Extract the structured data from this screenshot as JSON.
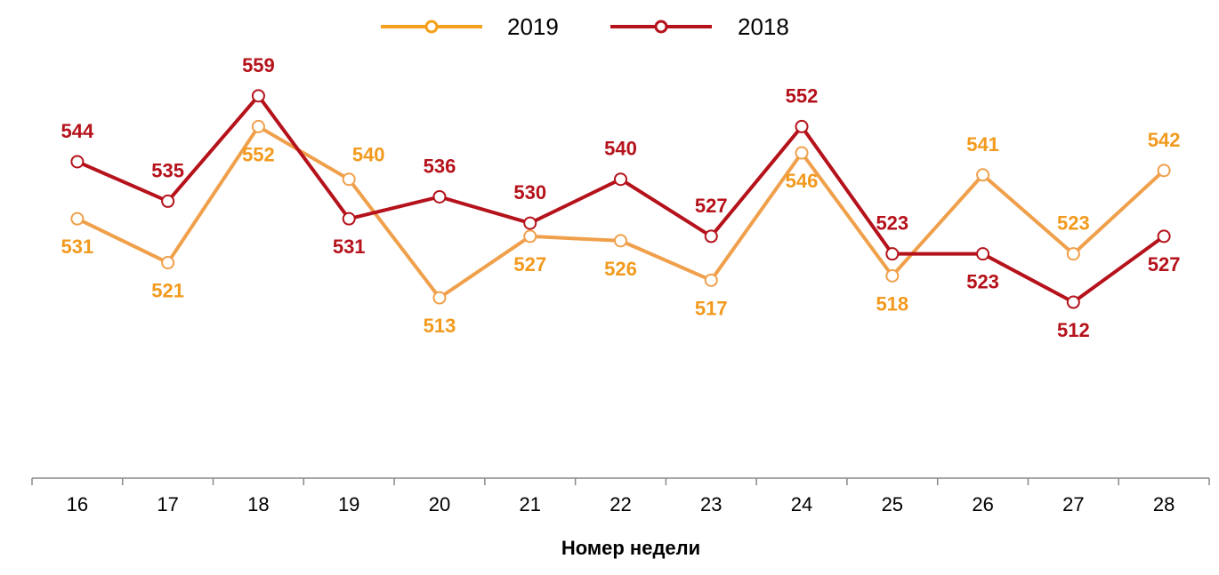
{
  "chart_data": {
    "type": "line",
    "title": "",
    "xlabel": "Номер недели",
    "ylabel": "",
    "categories": [
      "16",
      "17",
      "18",
      "19",
      "20",
      "21",
      "22",
      "23",
      "24",
      "25",
      "26",
      "27",
      "28"
    ],
    "ylim": [
      470,
      570
    ],
    "grid": false,
    "legend_position": "top-center",
    "series": [
      {
        "name": "2019",
        "color": "#F0A04B",
        "legend_color": "#F5A01A",
        "label_color": "#F29A1E",
        "values": [
          531,
          521,
          552,
          540,
          513,
          527,
          526,
          517,
          546,
          518,
          541,
          523,
          542
        ],
        "label_placement": [
          "below",
          "below",
          "below",
          "right",
          "below",
          "below",
          "below",
          "below",
          "below",
          "below",
          "above",
          "above",
          "above"
        ]
      },
      {
        "name": "2018",
        "color": "#B5121B",
        "legend_color": "#B5121B",
        "label_color": "#B5121B",
        "values": [
          544,
          535,
          559,
          531,
          536,
          530,
          540,
          527,
          552,
          523,
          523,
          512,
          527
        ],
        "label_placement": [
          "above",
          "above",
          "above",
          "below",
          "above",
          "above",
          "above",
          "above",
          "above",
          "above",
          "below",
          "below",
          "below"
        ]
      }
    ]
  }
}
